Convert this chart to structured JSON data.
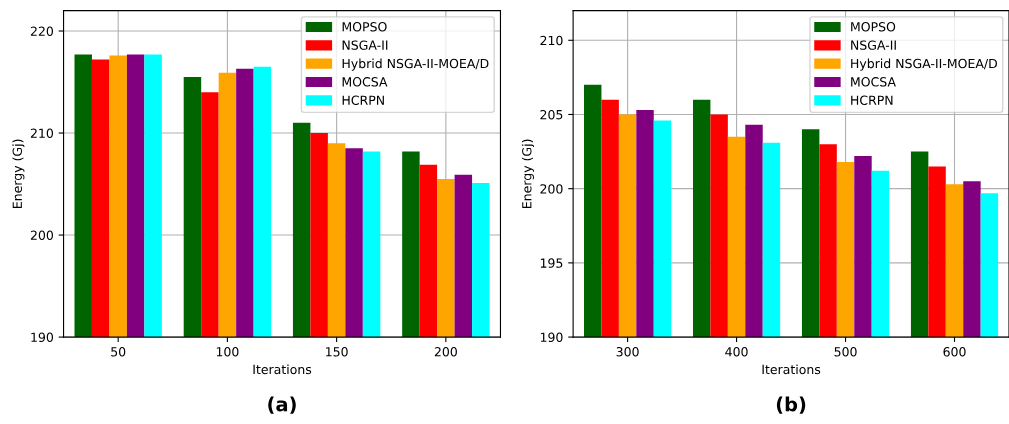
{
  "chart_data": [
    {
      "type": "bar",
      "categories": [
        "50",
        "100",
        "150",
        "200"
      ],
      "xlabel": "Iterations",
      "ylabel": "Energy (Gj)",
      "ylim": [
        190,
        222
      ],
      "yticks": [
        190,
        200,
        210,
        220
      ],
      "grid": true,
      "legend": "top right",
      "annotations": [
        "(a)"
      ],
      "series": [
        {
          "name": "MOPSO",
          "color": "#006400",
          "values": [
            217.7,
            215.5,
            211.0,
            208.2
          ]
        },
        {
          "name": "NSGA-II",
          "color": "#ff0000",
          "values": [
            217.2,
            214.0,
            210.0,
            206.9
          ]
        },
        {
          "name": "Hybrid NSGA-II-MOEA/D",
          "color": "#ffa500",
          "values": [
            217.6,
            215.9,
            209.0,
            205.5
          ]
        },
        {
          "name": "MOCSA",
          "color": "#800080",
          "values": [
            217.7,
            216.3,
            208.5,
            205.9
          ]
        },
        {
          "name": "HCRPN",
          "color": "#00ffff",
          "values": [
            217.7,
            216.5,
            208.2,
            205.1
          ]
        }
      ]
    },
    {
      "type": "bar",
      "categories": [
        "300",
        "400",
        "500",
        "600"
      ],
      "xlabel": "Iterations",
      "ylabel": "Energy (Gj)",
      "ylim": [
        190,
        212
      ],
      "yticks": [
        190,
        195,
        200,
        205,
        210
      ],
      "grid": true,
      "legend": "top right",
      "annotations": [
        "(b)"
      ],
      "series": [
        {
          "name": "MOPSO",
          "color": "#006400",
          "values": [
            207.0,
            206.0,
            204.0,
            202.5
          ]
        },
        {
          "name": "NSGA-II",
          "color": "#ff0000",
          "values": [
            206.0,
            205.0,
            203.0,
            201.5
          ]
        },
        {
          "name": "Hybrid NSGA-II-MOEA/D",
          "color": "#ffa500",
          "values": [
            205.0,
            203.5,
            201.8,
            200.3
          ]
        },
        {
          "name": "MOCSA",
          "color": "#800080",
          "values": [
            205.3,
            204.3,
            202.2,
            200.5
          ]
        },
        {
          "name": "HCRPN",
          "color": "#00ffff",
          "values": [
            204.6,
            203.1,
            201.2,
            199.7
          ]
        }
      ]
    }
  ]
}
